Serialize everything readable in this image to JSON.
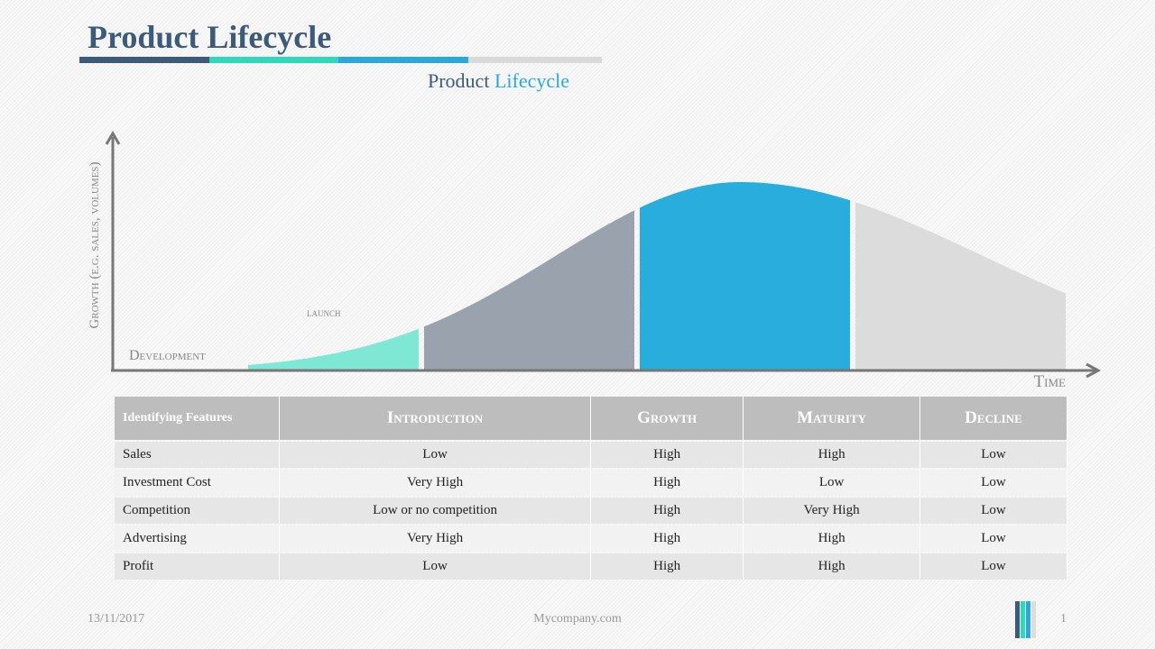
{
  "header": {
    "title": "Product Lifecycle"
  },
  "subtitle": {
    "first": "Product",
    "second": "Lifecycle"
  },
  "diagram": {
    "y_axis_label": "Growth (e.g. sales, volumes)",
    "x_axis_label": "Time",
    "stage_labels": [
      "Development",
      "launch"
    ]
  },
  "table": {
    "header": [
      "Identifying Features",
      "Introduction",
      "Growth",
      "Maturity",
      "Decline"
    ],
    "rows": [
      [
        "Sales",
        "Low",
        "High",
        "High",
        "Low"
      ],
      [
        "Investment Cost",
        "Very High",
        "High",
        "Low",
        "Low"
      ],
      [
        "Competition",
        "Low or no competition",
        "High",
        "Very High",
        "Low"
      ],
      [
        "Advertising",
        "Very High",
        "High",
        "High",
        "Low"
      ],
      [
        "Profit",
        "Low",
        "High",
        "High",
        "Low"
      ]
    ]
  },
  "footer": {
    "date": "13/11/2017",
    "website": "Mycompany.com",
    "page": "1"
  }
}
